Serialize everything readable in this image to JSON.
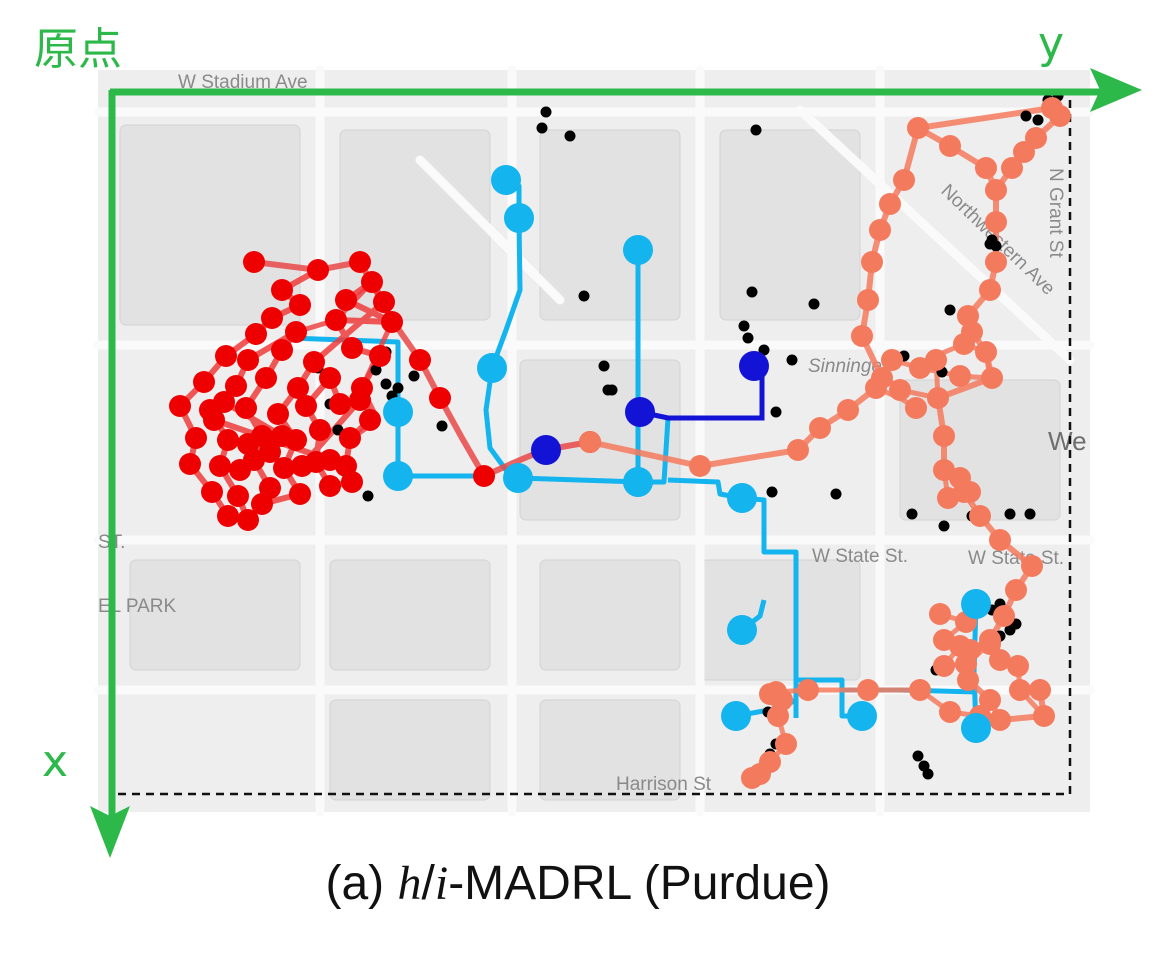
{
  "axes": {
    "origin_label": "原点",
    "x_label": "x",
    "y_label": "y",
    "color": "#2db84a"
  },
  "map": {
    "streets": [
      "W Stadium Ave",
      "W State St.",
      "W State St.",
      "Harrison St",
      "Northwestern Ave",
      "N Grant St",
      "Sinninger",
      "We",
      "EL PARK",
      "ST."
    ]
  },
  "caption": {
    "prefix": "(a) ",
    "math_h": "h",
    "slash": "/",
    "math_i": "i",
    "suffix": "-MADRL (Purdue)"
  },
  "colors": {
    "red_agent": "#ef0000",
    "salmon_agent": "#f47a5e",
    "uav_blue": "#14b4ee",
    "dark_blue": "#1313d6",
    "poi": "#000000"
  }
}
